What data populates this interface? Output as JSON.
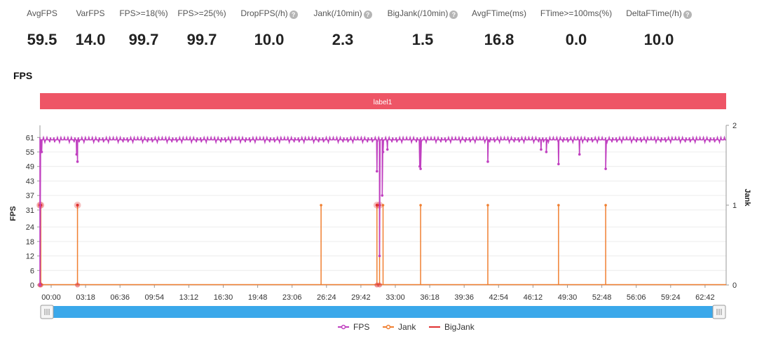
{
  "stats": [
    {
      "label": "AvgFPS",
      "value": "59.5",
      "help": false
    },
    {
      "label": "VarFPS",
      "value": "14.0",
      "help": false
    },
    {
      "label": "FPS>=18(%)",
      "value": "99.7",
      "help": false
    },
    {
      "label": "FPS>=25(%)",
      "value": "99.7",
      "help": false
    },
    {
      "label": "DropFPS(/h)",
      "value": "10.0",
      "help": true
    },
    {
      "label": "Jank(/10min)",
      "value": "2.3",
      "help": true
    },
    {
      "label": "BigJank(/10min)",
      "value": "1.5",
      "help": true
    },
    {
      "label": "AvgFTime(ms)",
      "value": "16.8",
      "help": false
    },
    {
      "label": "FTime>=100ms(%)",
      "value": "0.0",
      "help": false
    },
    {
      "label": "DeltaFTime(/h)",
      "value": "10.0",
      "help": true
    }
  ],
  "section_title": "FPS",
  "label_band": "label1",
  "colors": {
    "fps": "#c040c0",
    "jank": "#f07f30",
    "bigjank": "#e03030",
    "band": "#ee5566",
    "slider": "#3aa8ea"
  },
  "chart_data": {
    "type": "line",
    "ylabel_left": "FPS",
    "ylabel_right": "Jank",
    "y_left_ticks": [
      "0",
      "6",
      "12",
      "18",
      "24",
      "31",
      "37",
      "43",
      "49",
      "55",
      "61"
    ],
    "y_left_max": 66,
    "y_right_ticks": [
      "0",
      "1",
      "2"
    ],
    "y_right_max": 2,
    "x_ticks": [
      "00:00",
      "03:18",
      "06:36",
      "09:54",
      "13:12",
      "16:30",
      "19:48",
      "23:06",
      "26:24",
      "29:42",
      "33:00",
      "36:18",
      "39:36",
      "42:54",
      "46:12",
      "49:30",
      "52:48",
      "56:06",
      "59:24",
      "62:42"
    ],
    "x_range_seconds": [
      0,
      3930
    ],
    "fps_baseline": 60,
    "fps_dips": [
      {
        "t": 0,
        "fps": 0
      },
      {
        "t": 10,
        "fps": 55
      },
      {
        "t": 215,
        "fps": 51
      },
      {
        "t": 210,
        "fps": 54
      },
      {
        "t": 1930,
        "fps": 47
      },
      {
        "t": 1945,
        "fps": 12
      },
      {
        "t": 1960,
        "fps": 37
      },
      {
        "t": 1965,
        "fps": 55
      },
      {
        "t": 1990,
        "fps": 56
      },
      {
        "t": 2180,
        "fps": 48
      },
      {
        "t": 2175,
        "fps": 49
      },
      {
        "t": 2565,
        "fps": 51
      },
      {
        "t": 2870,
        "fps": 56
      },
      {
        "t": 2900,
        "fps": 55
      },
      {
        "t": 2970,
        "fps": 50
      },
      {
        "t": 3090,
        "fps": 54
      },
      {
        "t": 3240,
        "fps": 48
      }
    ],
    "jank": [
      5,
      215,
      1610,
      1930,
      1945,
      1965,
      2180,
      2565,
      2970,
      3240
    ],
    "bigjank": [
      0,
      5,
      215,
      1930,
      1945
    ],
    "legend": [
      "FPS",
      "Jank",
      "BigJank"
    ]
  }
}
